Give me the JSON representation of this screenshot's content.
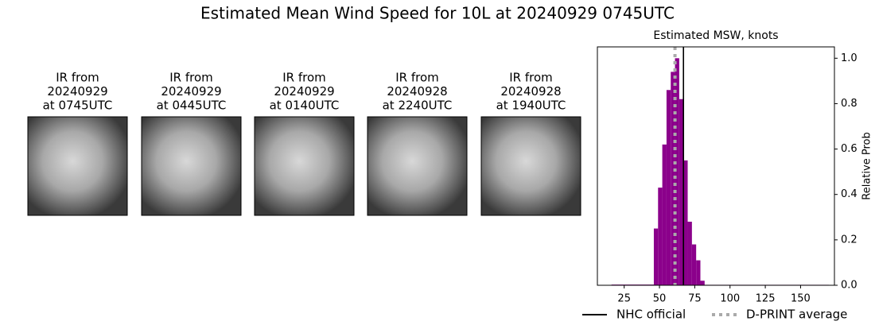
{
  "title": "Estimated Mean Wind Speed for 10L at 20240929 0745UTC",
  "panels": [
    {
      "lines": [
        "IR from",
        "20240929",
        "at 0745UTC"
      ]
    },
    {
      "lines": [
        "IR from",
        "20240929",
        "at 0445UTC"
      ]
    },
    {
      "lines": [
        "IR from",
        "20240929",
        "at 0140UTC"
      ]
    },
    {
      "lines": [
        "IR from",
        "20240928",
        "at 2240UTC"
      ]
    },
    {
      "lines": [
        "IR from",
        "20240928",
        "at 1940UTC"
      ]
    }
  ],
  "chart_data": {
    "type": "histogram",
    "title": "Estimated MSW, knots",
    "bins": [
      16,
      46,
      49,
      52,
      55,
      58,
      61,
      64,
      67,
      70,
      73,
      76,
      79,
      82,
      170
    ],
    "values": [
      0.003,
      0.25,
      0.43,
      0.62,
      0.86,
      0.94,
      1.0,
      0.82,
      0.55,
      0.28,
      0.18,
      0.11,
      0.02,
      0.002
    ],
    "color": "#8b008b",
    "xlim": [
      6,
      174
    ],
    "xticks": [
      25,
      50,
      75,
      100,
      125,
      150
    ],
    "ylim": [
      0,
      1.05
    ],
    "yticks": [
      {
        "value": 0,
        "label": "0.0"
      },
      0.2,
      0.4,
      0.6,
      0.8,
      {
        "value": 1,
        "label": "1.0"
      }
    ],
    "ylabel": "Relative Prob",
    "lines": [
      {
        "name": "NHC official",
        "value": 67,
        "color": "#000000",
        "style": "solid"
      },
      {
        "name": "D-PRINT average",
        "value": 61,
        "color": "#aaaaaa",
        "style": "dotted"
      }
    ]
  }
}
